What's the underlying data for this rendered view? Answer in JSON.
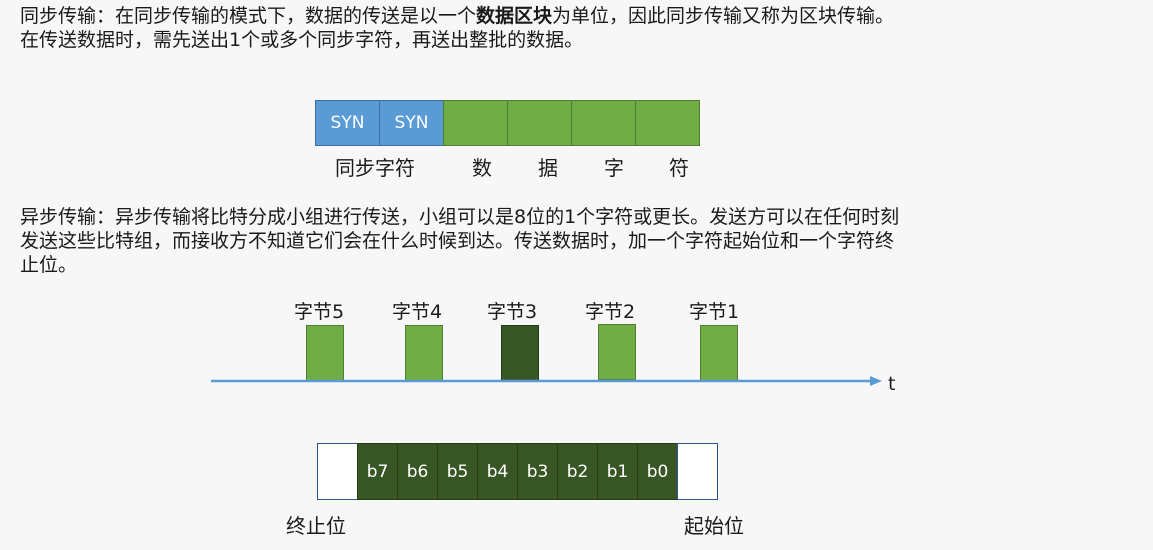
{
  "sync": {
    "text_a": "同步传输：在同步传输的模式下，数据的传送是以一个",
    "text_bold": "数据区块",
    "text_b": "为单位，因此同步传输又称为区块传输。",
    "text_line2": "在传送数据时，需先送出1个或多个同步字符，再送出整批的数据。",
    "frame_cells": [
      "SYN",
      "SYN",
      "",
      "",
      "",
      ""
    ],
    "label_syn": "同步字符",
    "label_data": [
      "数",
      "据",
      "字",
      "符"
    ]
  },
  "async": {
    "text_line1": "异步传输：异步传输将比特分成小组进行传送，小组可以是8位的1个字符或更长。发送方可以在任何时刻",
    "text_line2": "发送这些比特组，而接收方不知道它们会在什么时候到达。传送数据时，加一个字符起始位和一个字符终",
    "text_line3": "止位。",
    "bytes": [
      "字节5",
      "字节4",
      "字节3",
      "字节2",
      "字节1"
    ],
    "highlighted_byte": "字节3",
    "time_axis_label": "t",
    "bits": [
      "",
      "b7",
      "b6",
      "b5",
      "b4",
      "b3",
      "b2",
      "b1",
      "b0",
      ""
    ],
    "stop_label": "终止位",
    "start_label": "起始位"
  },
  "colors": {
    "syn_blue": "#5b9bd5",
    "data_green": "#70ad47",
    "dark_green": "#375623",
    "axis_blue": "#5b9bd5"
  }
}
